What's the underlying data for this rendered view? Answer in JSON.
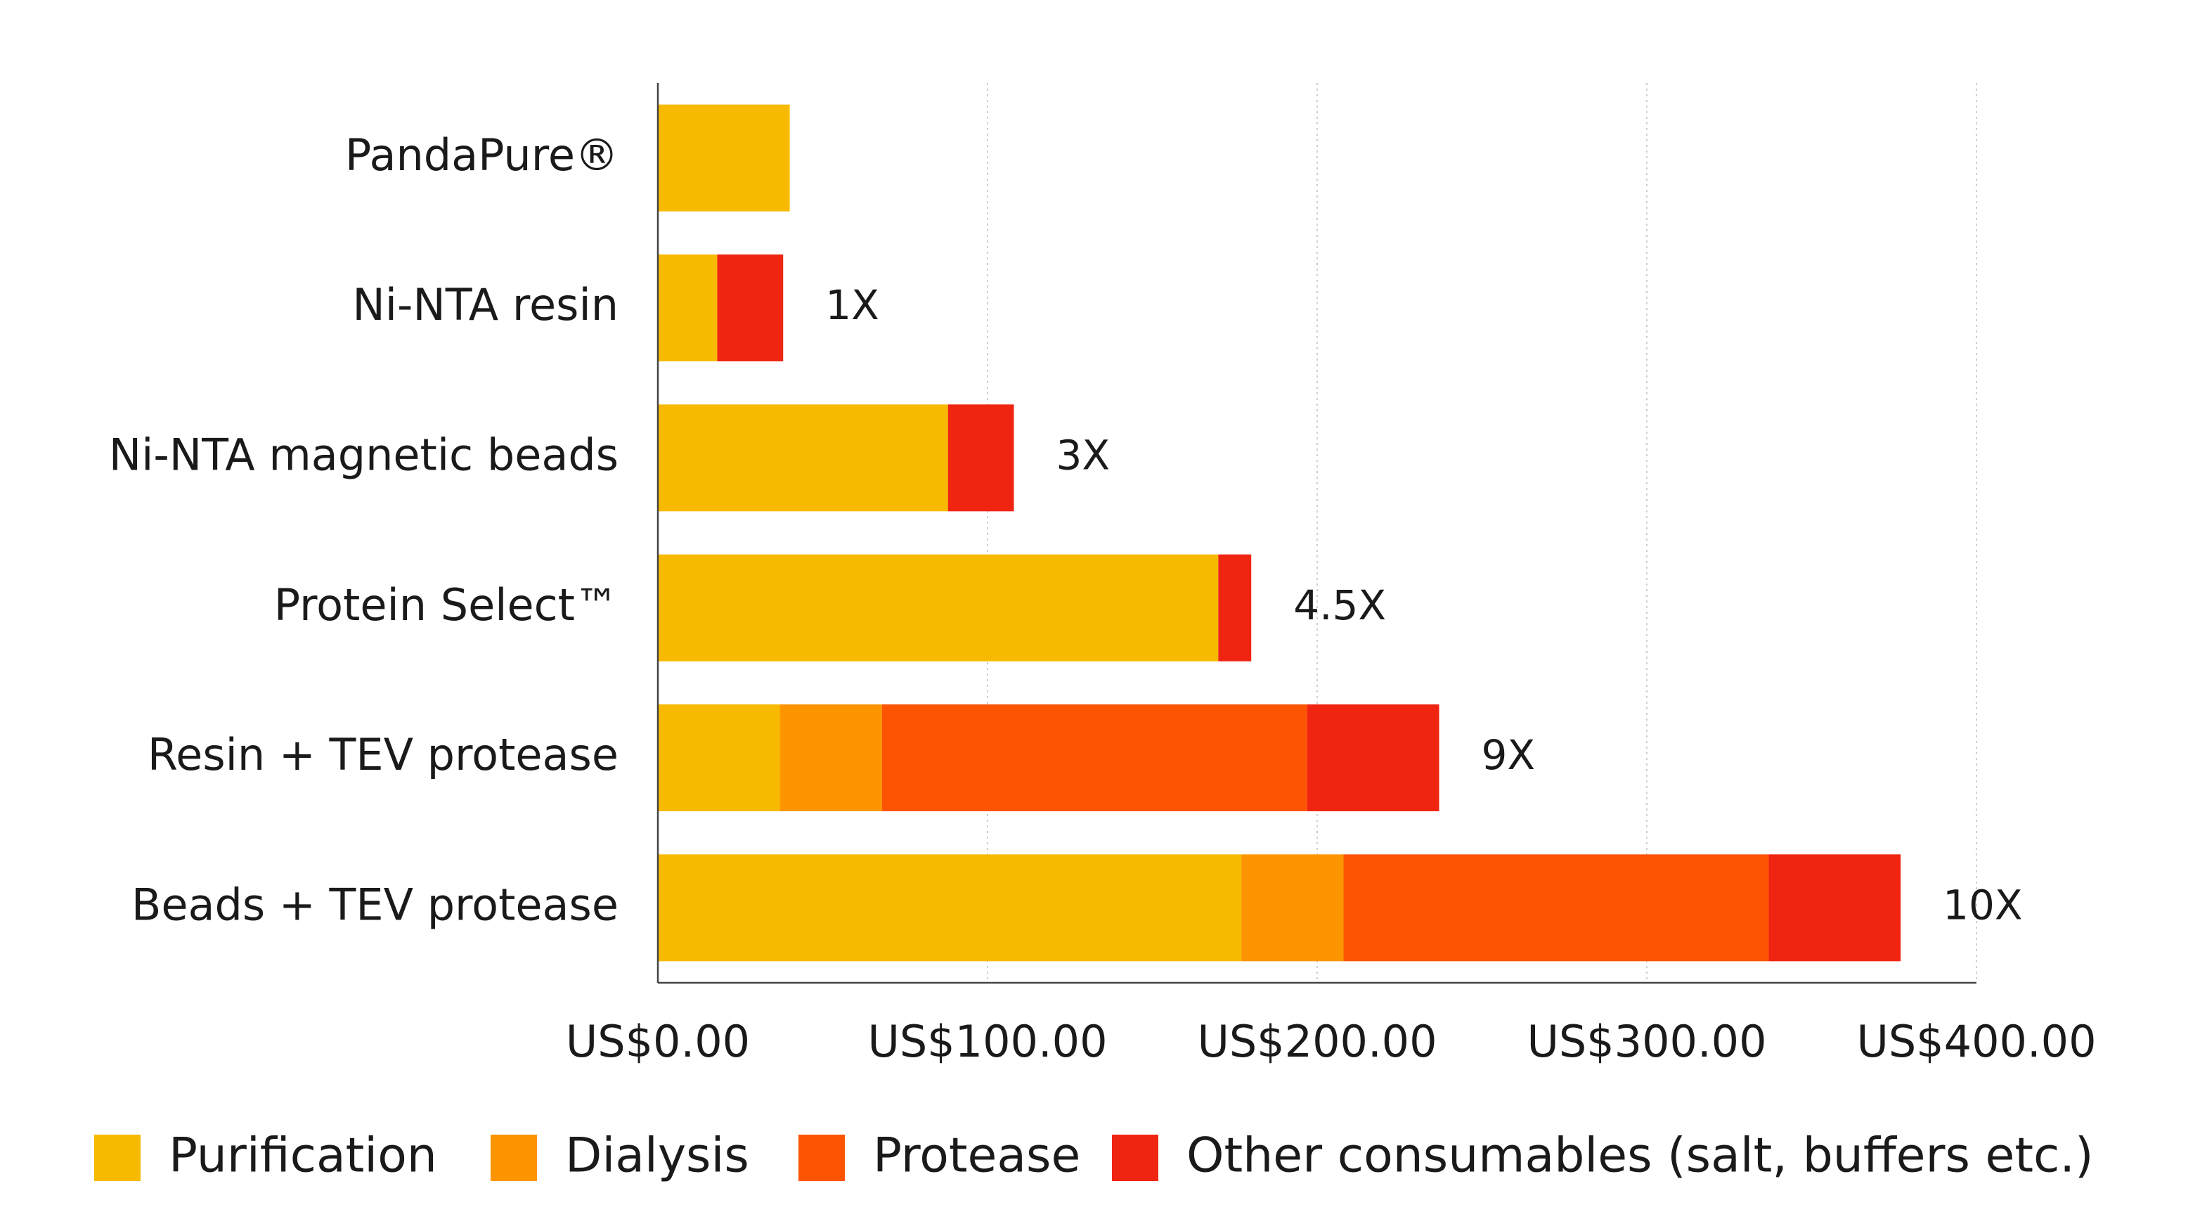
{
  "chart_data": {
    "type": "bar",
    "orientation": "horizontal",
    "stacked": true,
    "title": "",
    "xlabel": "",
    "ylabel": "",
    "categories": [
      "PandaPure®",
      "Ni-NTA resin",
      "Ni-NTA magnetic beads",
      "Protein Select™",
      "Resin + TEV protease",
      "Beads + TEV protease"
    ],
    "series": [
      {
        "name": "Purification",
        "color": "#F8BA00",
        "values": [
          40,
          18,
          88,
          170,
          37,
          177
        ]
      },
      {
        "name": "Dialysis",
        "color": "#FD9500",
        "values": [
          0,
          0,
          0,
          0,
          31,
          31
        ]
      },
      {
        "name": "Protease",
        "color": "#FD5404",
        "values": [
          0,
          0,
          0,
          0,
          129,
          129
        ]
      },
      {
        "name": "Other consumables (salt, buffers etc.)",
        "color": "#EF2512",
        "values": [
          0,
          20,
          20,
          10,
          40,
          40
        ]
      }
    ],
    "annotations": [
      "",
      "1X",
      "3X",
      "4.5X",
      "9X",
      "10X"
    ],
    "xlim": [
      0,
      400
    ],
    "xticks": [
      0,
      100,
      200,
      300,
      400
    ],
    "xtick_labels": [
      "US$0.00",
      "US$100.00",
      "US$200.00",
      "US$300.00",
      "US$400.00"
    ],
    "grid": "vertical dotted",
    "legend_position": "bottom"
  }
}
